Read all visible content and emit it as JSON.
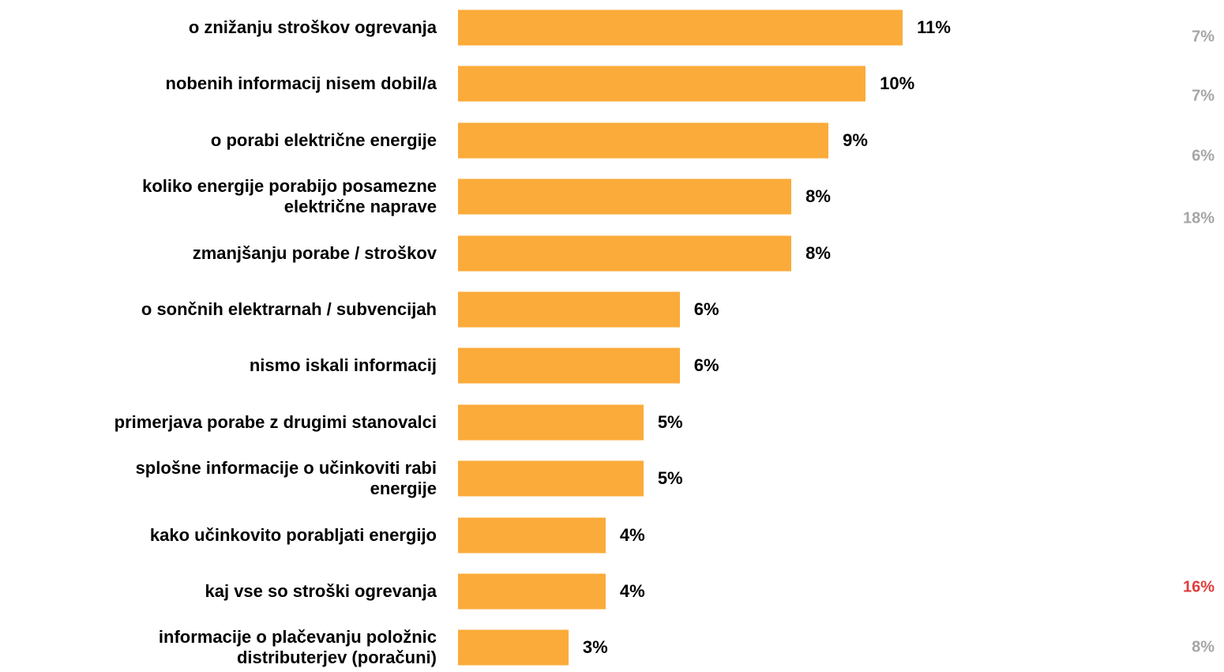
{
  "chart_data": {
    "type": "bar",
    "orientation": "horizontal",
    "categories": [
      "o znižanju stroškov ogrevanja",
      "nobenih informacij nisem dobil/a",
      "o porabi električne energije",
      "koliko energije porabijo posamezne\nelektrične naprave",
      "zmanjšanju porabe / stroškov",
      "o sončnih elektrarnah / subvencijah",
      "nismo iskali informacij",
      "primerjava porabe z drugimi stanovalci",
      "splošne informacije o učinkoviti rabi\nenergije",
      "kako učinkovito porabljati energijo",
      "kaj vse so stroški ogrevanja",
      "informacije o plačevanju položnic\ndistributerjev (poračuni)"
    ],
    "values": [
      11.15,
      10.22,
      9.29,
      8.36,
      8.36,
      5.56,
      5.56,
      4.65,
      4.65,
      3.7,
      3.7,
      2.77
    ],
    "value_labels": [
      "11%",
      "10%",
      "9%",
      "8%",
      "8%",
      "6%",
      "6%",
      "5%",
      "5%",
      "4%",
      "4%",
      "3%"
    ],
    "color": "#fbab3a",
    "xlim": [
      0,
      19
    ],
    "comparison": [
      {
        "value": 7,
        "label": "7%",
        "color": "#a6a6a6"
      },
      {
        "value": 7,
        "label": "7%",
        "color": "#a6a6a6"
      },
      {
        "value": 6,
        "label": "6%",
        "color": "#a6a6a6"
      },
      {
        "value": 18,
        "label": "18%",
        "color": "#a6a6a6"
      },
      {
        "value": 16,
        "label": "16%",
        "color": "#e03c3c"
      },
      {
        "value": 8,
        "label": "8%",
        "color": "#a6a6a6"
      }
    ]
  }
}
